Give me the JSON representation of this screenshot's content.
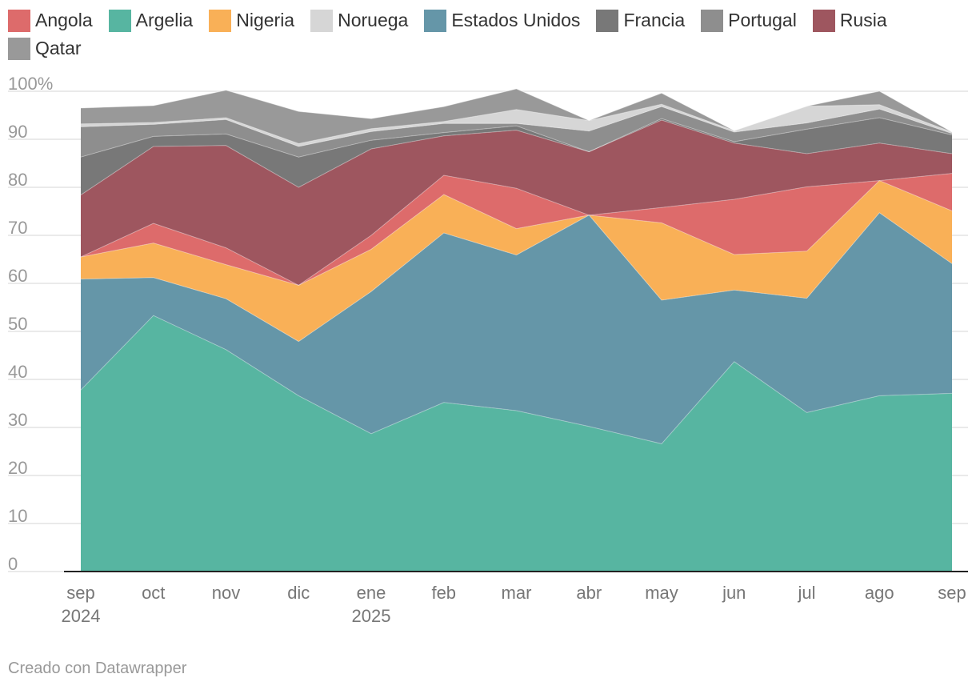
{
  "chart_data": {
    "type": "area",
    "stacked": true,
    "title": "",
    "xlabel": "",
    "ylabel": "",
    "ylim": [
      0,
      100
    ],
    "y_ticks": [
      "100%",
      "90",
      "80",
      "70",
      "60",
      "50",
      "40",
      "30",
      "20",
      "10",
      "0"
    ],
    "x_ticks": [
      {
        "label": "sep",
        "sub": "2024"
      },
      {
        "label": "oct",
        "sub": ""
      },
      {
        "label": "nov",
        "sub": ""
      },
      {
        "label": "dic",
        "sub": ""
      },
      {
        "label": "ene",
        "sub": "2025"
      },
      {
        "label": "feb",
        "sub": ""
      },
      {
        "label": "mar",
        "sub": ""
      },
      {
        "label": "abr",
        "sub": ""
      },
      {
        "label": "may",
        "sub": ""
      },
      {
        "label": "jun",
        "sub": ""
      },
      {
        "label": "jul",
        "sub": ""
      },
      {
        "label": "ago",
        "sub": ""
      },
      {
        "label": "sep",
        "sub": ""
      }
    ],
    "grid": true,
    "legend_position": "top",
    "series": [
      {
        "name": "Argelia",
        "color": "#57b5a1",
        "values": [
          37.8,
          53.3,
          46.2,
          36.6,
          28.7,
          35.2,
          33.5,
          30.2,
          26.6,
          43.7,
          33.1,
          36.6,
          37.1
        ]
      },
      {
        "name": "Estados Unidos",
        "color": "#6596a8",
        "values": [
          23.1,
          7.9,
          10.6,
          11.3,
          29.6,
          35.3,
          32.4,
          44.0,
          29.9,
          14.9,
          23.8,
          38.1,
          27.0
        ]
      },
      {
        "name": "Nigeria",
        "color": "#f9b057",
        "values": [
          4.6,
          7.2,
          7.1,
          11.7,
          8.8,
          8.0,
          5.5,
          0.0,
          16.1,
          7.4,
          9.8,
          6.7,
          11.0
        ]
      },
      {
        "name": "Angola",
        "color": "#dd6b6b",
        "values": [
          0.0,
          4.1,
          3.5,
          0.0,
          2.9,
          4.0,
          8.4,
          0.0,
          3.2,
          11.5,
          13.4,
          0.0,
          7.8
        ]
      },
      {
        "name": "Rusia",
        "color": "#9e565f",
        "values": [
          12.9,
          16.0,
          21.3,
          20.4,
          18.0,
          8.2,
          12.1,
          13.2,
          18.2,
          11.7,
          6.9,
          7.8,
          4.1
        ]
      },
      {
        "name": "Francia",
        "color": "#787878",
        "values": [
          7.9,
          2.1,
          2.4,
          6.3,
          1.8,
          0.7,
          0.9,
          0.0,
          0.3,
          0.3,
          5.1,
          5.3,
          3.9
        ]
      },
      {
        "name": "Portugal",
        "color": "#8e8e8e",
        "values": [
          6.3,
          2.5,
          3.0,
          2.2,
          1.8,
          1.9,
          0.5,
          4.3,
          2.5,
          2.0,
          1.3,
          1.8,
          0.3
        ]
      },
      {
        "name": "Noruega",
        "color": "#d6d6d6",
        "values": [
          0.6,
          0.4,
          0.4,
          0.6,
          0.6,
          0.4,
          2.9,
          2.2,
          0.5,
          0.3,
          3.5,
          0.9,
          0.3
        ]
      },
      {
        "name": "Qatar",
        "color": "#999999",
        "values": [
          3.3,
          3.5,
          5.7,
          6.7,
          2.1,
          3.1,
          4.3,
          0.0,
          2.3,
          0.0,
          0.0,
          2.8,
          0.0
        ]
      }
    ],
    "legend_order": [
      "Angola",
      "Argelia",
      "Nigeria",
      "Noruega",
      "Estados Unidos",
      "Francia",
      "Portugal",
      "Rusia",
      "Qatar"
    ]
  },
  "footer": {
    "credit": "Creado con Datawrapper"
  }
}
